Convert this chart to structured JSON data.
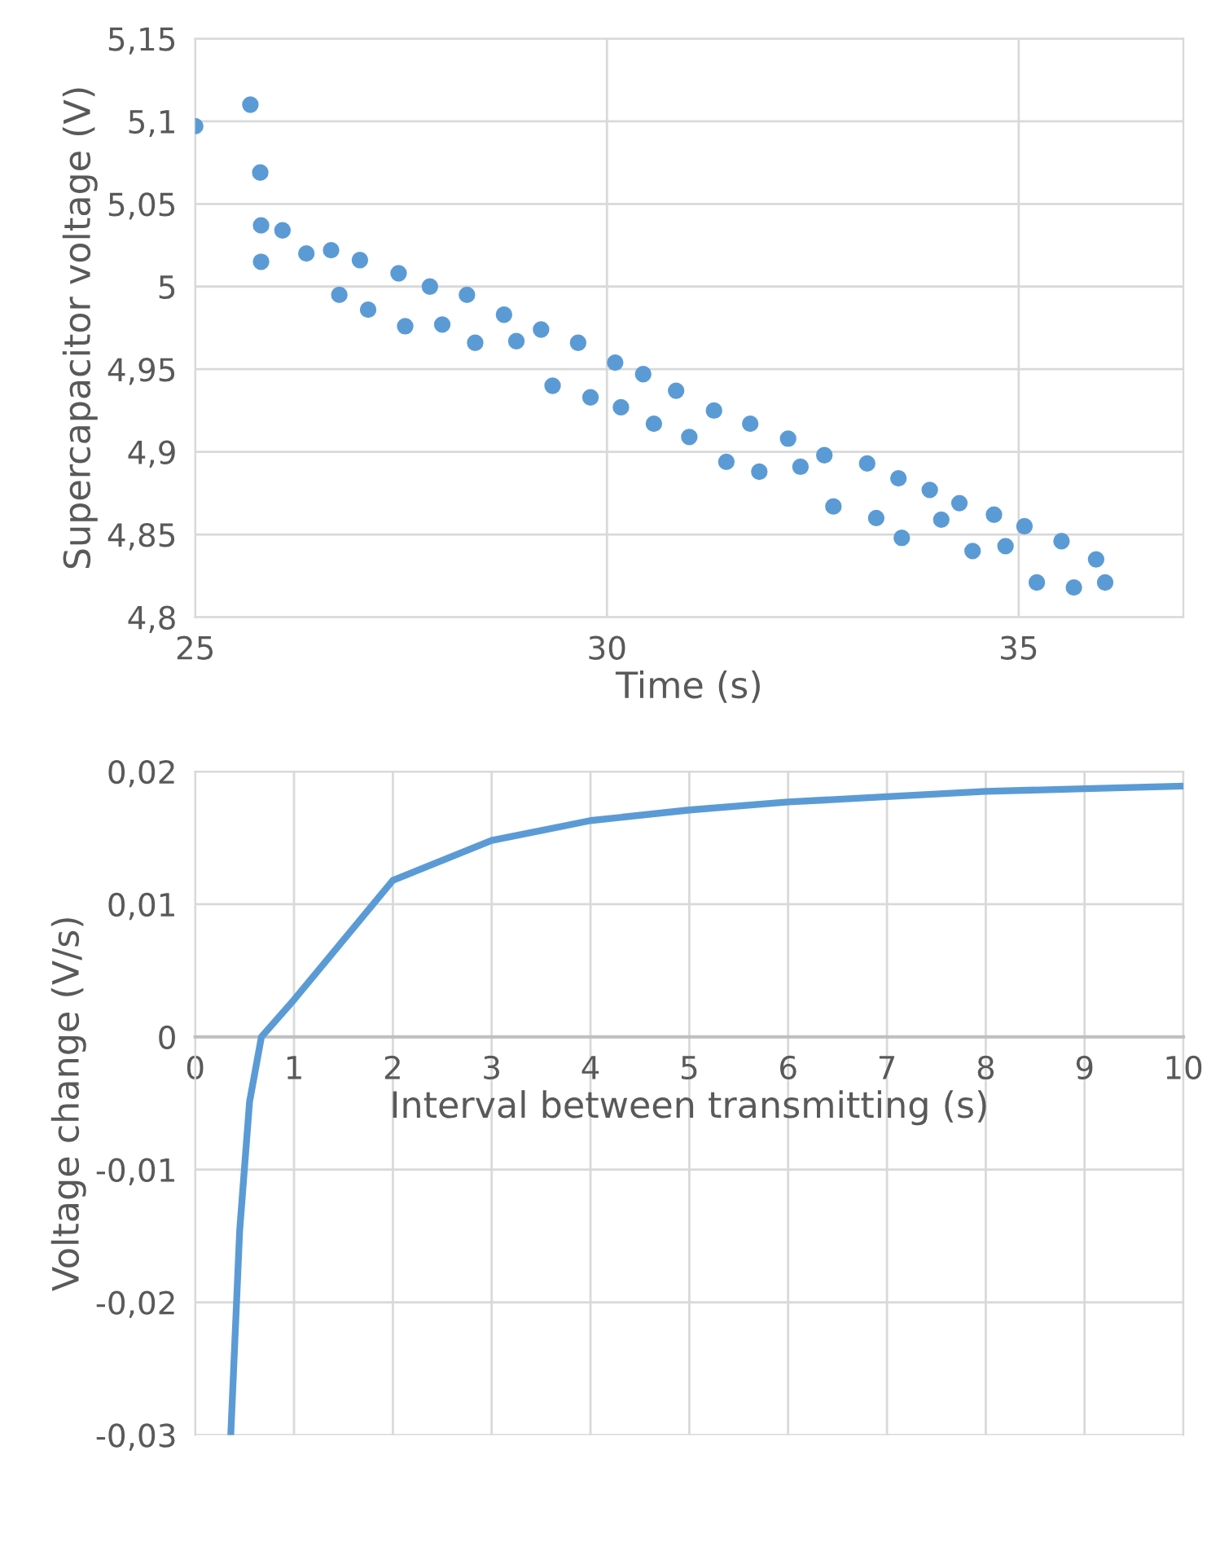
{
  "chart_data": [
    {
      "type": "scatter",
      "xlabel": "Time (s)",
      "ylabel": "Supercapacitor voltage (V)",
      "marker": "circle",
      "grid": true,
      "xlim": [
        25,
        37
      ],
      "xticks": [
        25,
        30,
        35
      ],
      "ylim": [
        4.8,
        5.15
      ],
      "yticks": [
        {
          "value": 4.8,
          "label": "4,8"
        },
        {
          "value": 4.85,
          "label": "4,85"
        },
        {
          "value": 4.9,
          "label": "4,9"
        },
        {
          "value": 4.95,
          "label": "4,95"
        },
        {
          "value": 5.0,
          "label": "5"
        },
        {
          "value": 5.05,
          "label": "5,05"
        },
        {
          "value": 5.1,
          "label": "5,1"
        },
        {
          "value": 5.15,
          "label": "5,15"
        }
      ],
      "series": [
        {
          "color": "#5b9bd5",
          "x": [
            25.0,
            25.67,
            25.79,
            25.8,
            25.8,
            26.06,
            26.35,
            26.65,
            26.75,
            27.0,
            27.1,
            27.47,
            27.55,
            27.85,
            28.0,
            28.3,
            28.4,
            28.75,
            28.9,
            29.2,
            29.34,
            29.65,
            29.8,
            30.1,
            30.17,
            30.44,
            30.57,
            30.84,
            31.0,
            31.3,
            31.45,
            31.74,
            31.85,
            32.2,
            32.35,
            32.64,
            32.75,
            33.16,
            33.27,
            33.54,
            33.58,
            33.92,
            34.06,
            34.28,
            34.44,
            34.7,
            34.84,
            35.07,
            35.22,
            35.52,
            35.67,
            35.94,
            36.05
          ],
          "values": [
            5.097,
            5.11,
            5.069,
            5.037,
            5.015,
            5.034,
            5.02,
            5.022,
            4.995,
            5.016,
            4.986,
            5.008,
            4.976,
            5.0,
            4.977,
            4.995,
            4.966,
            4.983,
            4.967,
            4.974,
            4.94,
            4.966,
            4.933,
            4.954,
            4.927,
            4.947,
            4.917,
            4.937,
            4.909,
            4.925,
            4.894,
            4.917,
            4.888,
            4.908,
            4.891,
            4.898,
            4.867,
            4.893,
            4.86,
            4.884,
            4.848,
            4.877,
            4.859,
            4.869,
            4.84,
            4.862,
            4.843,
            4.855,
            4.821,
            4.846,
            4.818,
            4.835,
            4.821
          ]
        }
      ]
    },
    {
      "type": "line",
      "xlabel": "Interval between transmitting (s)",
      "ylabel": "Voltage change (V/s)",
      "grid": true,
      "marker": "none",
      "line_style": "solid",
      "xlim": [
        0,
        10
      ],
      "xticks": [
        0,
        1,
        2,
        3,
        4,
        5,
        6,
        7,
        8,
        9,
        10
      ],
      "ylim": [
        -0.03,
        0.02
      ],
      "yticks": [
        {
          "value": -0.03,
          "label": "-0,03"
        },
        {
          "value": -0.02,
          "label": "-0,02"
        },
        {
          "value": -0.01,
          "label": "-0,01"
        },
        {
          "value": 0,
          "label": "0"
        },
        {
          "value": 0.01,
          "label": "0,01"
        },
        {
          "value": 0.02,
          "label": "0,02"
        }
      ],
      "series": [
        {
          "color": "#5b9bd5",
          "x": [
            0.36,
            0.45,
            0.55,
            0.67,
            1,
            2,
            3,
            4,
            5,
            6,
            7,
            8,
            9,
            10
          ],
          "values": [
            -0.03,
            -0.0146,
            -0.0049,
            0.0,
            0.0028,
            0.0118,
            0.0148,
            0.0163,
            0.0171,
            0.0177,
            0.0181,
            0.0185,
            0.0187,
            0.0189
          ]
        }
      ]
    }
  ]
}
